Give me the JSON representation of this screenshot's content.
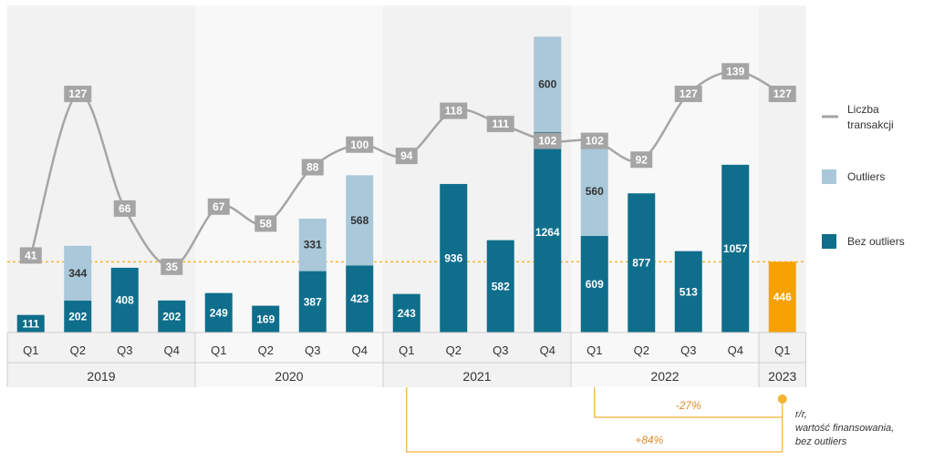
{
  "chart_data": {
    "type": "bar",
    "stacked": true,
    "categories": [
      {
        "quarter": "Q1",
        "year": "2019"
      },
      {
        "quarter": "Q2",
        "year": "2019"
      },
      {
        "quarter": "Q3",
        "year": "2019"
      },
      {
        "quarter": "Q4",
        "year": "2019"
      },
      {
        "quarter": "Q1",
        "year": "2020"
      },
      {
        "quarter": "Q2",
        "year": "2020"
      },
      {
        "quarter": "Q3",
        "year": "2020"
      },
      {
        "quarter": "Q4",
        "year": "2020"
      },
      {
        "quarter": "Q1",
        "year": "2021"
      },
      {
        "quarter": "Q2",
        "year": "2021"
      },
      {
        "quarter": "Q3",
        "year": "2021"
      },
      {
        "quarter": "Q4",
        "year": "2021"
      },
      {
        "quarter": "Q1",
        "year": "2022"
      },
      {
        "quarter": "Q2",
        "year": "2022"
      },
      {
        "quarter": "Q3",
        "year": "2022"
      },
      {
        "quarter": "Q4",
        "year": "2022"
      },
      {
        "quarter": "Q1",
        "year": "2023"
      }
    ],
    "years": [
      "2019",
      "2020",
      "2021",
      "2022",
      "2023"
    ],
    "series": [
      {
        "name": "Bez outliers",
        "type": "bar",
        "color": "#0f6e8c",
        "highlight_color": "#f5a200",
        "values": [
          111,
          202,
          408,
          202,
          249,
          169,
          387,
          423,
          243,
          936,
          582,
          1264,
          609,
          877,
          513,
          1057,
          446
        ]
      },
      {
        "name": "Outliers",
        "type": "bar",
        "color": "#a9c8da",
        "values": [
          null,
          344,
          null,
          null,
          null,
          null,
          331,
          568,
          null,
          null,
          null,
          600,
          560,
          null,
          null,
          null,
          null
        ]
      },
      {
        "name": "Liczba transakcji",
        "type": "line",
        "color": "#a5a5a5",
        "values": [
          41,
          127,
          66,
          35,
          67,
          58,
          88,
          100,
          94,
          118,
          111,
          102,
          102,
          92,
          127,
          139,
          127
        ]
      }
    ],
    "ylim_bars": [
      0,
      1900
    ],
    "ylim_line": [
      0,
      160
    ],
    "reference_line": {
      "value": 446,
      "color": "#f5a200"
    },
    "legend": [
      {
        "label": "Liczba transakcji",
        "kind": "line",
        "color": "#a5a5a5"
      },
      {
        "label": "Outliers",
        "kind": "box",
        "color": "#a9c8da"
      },
      {
        "label": "Bez outliers",
        "kind": "box",
        "color": "#0f6e8c"
      }
    ],
    "annotations": {
      "pct_yoy": "-27%",
      "pct_2021": "+84%",
      "note_lines": [
        "r/r,",
        "wartość finansowania,",
        "bez outliers"
      ]
    },
    "grid": false
  }
}
